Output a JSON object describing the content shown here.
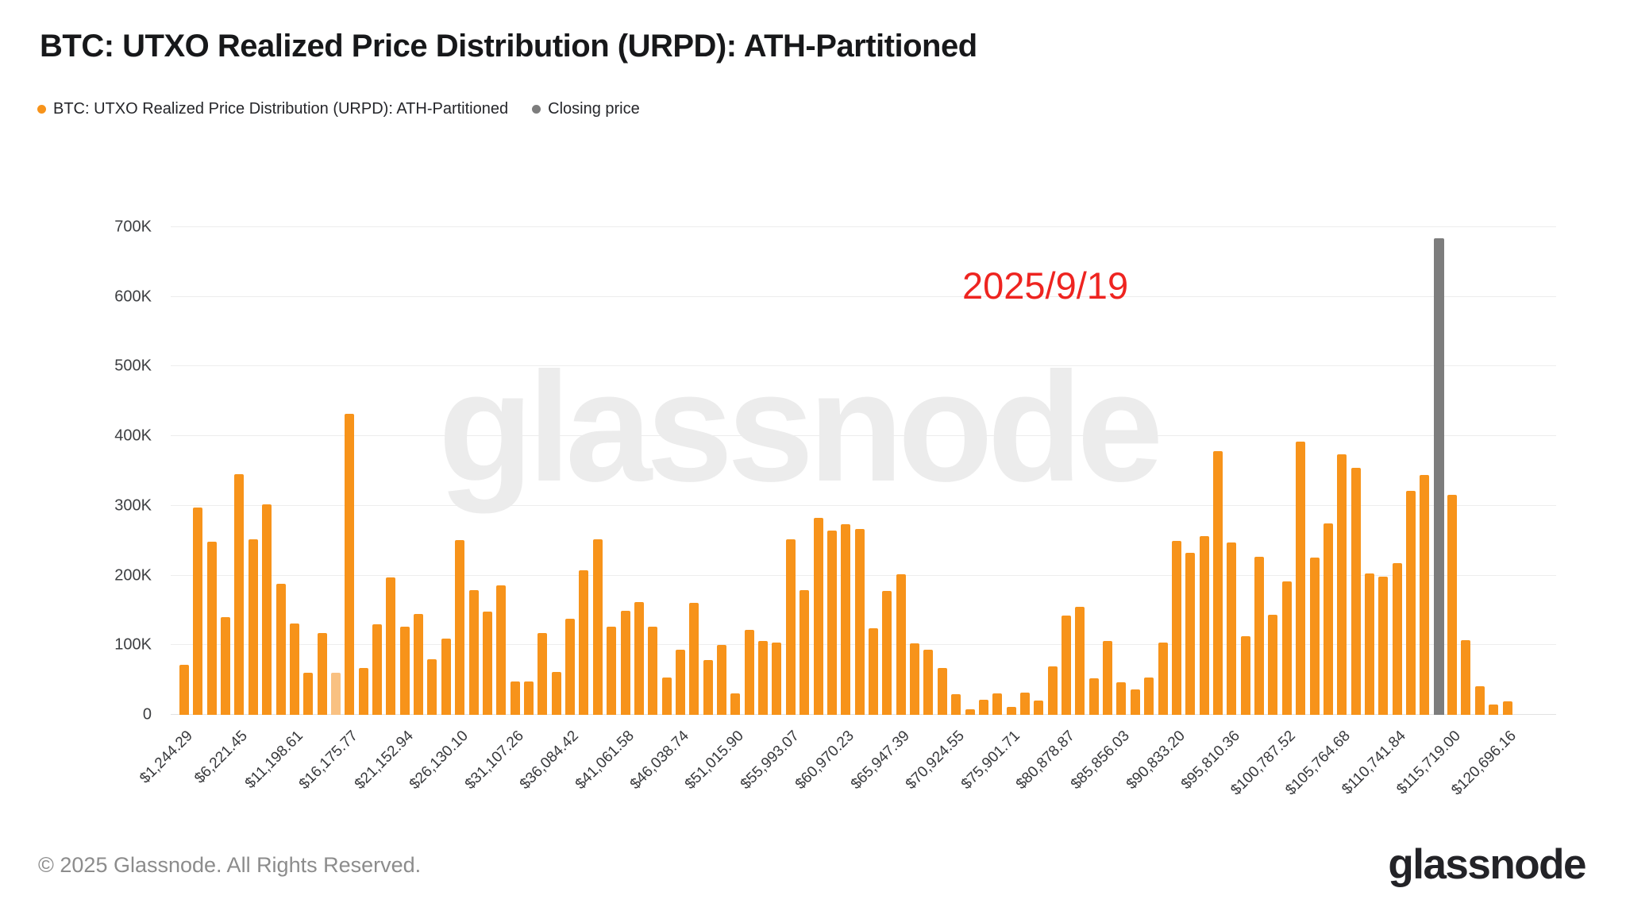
{
  "page": {
    "title": "BTC: UTXO Realized Price Distribution (URPD): ATH-Partitioned",
    "annotation_date": "2025/9/19",
    "watermark": "glassnode",
    "footer_copyright": "© 2025 Glassnode. All Rights Reserved.",
    "brand_logo": "glassnode"
  },
  "legend": {
    "items": [
      {
        "label": "BTC: UTXO Realized Price Distribution (URPD): ATH-Partitioned",
        "color": "#f7931a"
      },
      {
        "label": "Closing price",
        "color": "#7d7d7d"
      }
    ]
  },
  "chart_data": {
    "type": "bar",
    "title": "BTC: UTXO Realized Price Distribution (URPD): ATH-Partitioned",
    "grid": true,
    "legend_position": "top-left",
    "ylim_k": [
      0,
      700
    ],
    "y_tick_labels": [
      "0",
      "100K",
      "200K",
      "300K",
      "400K",
      "500K",
      "600K",
      "700K"
    ],
    "y_tick_values_k": [
      0,
      100,
      200,
      300,
      400,
      500,
      600,
      700
    ],
    "x_tick_labels": [
      "$1,244.29",
      "$6,221.45",
      "$11,198.61",
      "$16,175.77",
      "$21,152.94",
      "$26,130.10",
      "$31,107.26",
      "$36,084.42",
      "$41,061.58",
      "$46,038.74",
      "$51,015.90",
      "$55,993.07",
      "$60,970.23",
      "$65,947.39",
      "$70,924.55",
      "$75,901.71",
      "$80,878.87",
      "$85,856.03",
      "$90,833.20",
      "$95,810.36",
      "$100,787.52",
      "$105,764.68",
      "$110,741.84",
      "$115,719.00",
      "$120,696.16"
    ],
    "x_tick_every_slots": 4,
    "x_tick_interval_usd": 4977.16,
    "bin_width_usd": 1244.29,
    "slot_values_k_btc": [
      72,
      298,
      249,
      140,
      346,
      252,
      302,
      188,
      131,
      61,
      118,
      61,
      432,
      67,
      130,
      197,
      127,
      145,
      80,
      109,
      251,
      179,
      148,
      186,
      48,
      48,
      117,
      62,
      138,
      208,
      252,
      127,
      149,
      162,
      126,
      54,
      94,
      161,
      79,
      100,
      31,
      122,
      106,
      104,
      252,
      179,
      283,
      264,
      274,
      267,
      124,
      178,
      202,
      103,
      94,
      67,
      30,
      8,
      22,
      31,
      11,
      32,
      21,
      69,
      143,
      155,
      52,
      106,
      47,
      37,
      54,
      104,
      250,
      233,
      256,
      379,
      247,
      113,
      227,
      144,
      192,
      392,
      226,
      275,
      374,
      355,
      203,
      198,
      218,
      321,
      344,
      684,
      316,
      107,
      41,
      15,
      19
    ],
    "closing_price_marker": {
      "slot_index": 91,
      "bar_height_k_btc": 684,
      "label": "Closing price",
      "color": "#7d7d7d"
    },
    "highlighted_light_slot_index": 11,
    "series_color": "#f7931a",
    "light_bar_color": "#f9c182",
    "annotation": {
      "text": "2025/9/19",
      "color": "#ee2420"
    }
  }
}
